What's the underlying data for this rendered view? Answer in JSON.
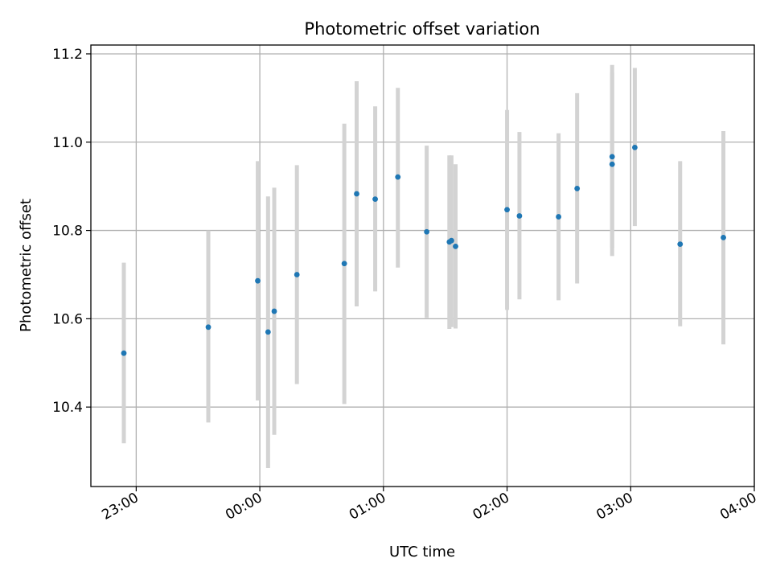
{
  "chart_data": {
    "type": "scatter",
    "title": "Photometric offset variation",
    "xlabel": "UTC time",
    "ylabel": "Photometric offset",
    "x_axis": "time",
    "x_tick_labels": [
      "23:00",
      "00:00",
      "01:00",
      "02:00",
      "03:00",
      "04:00"
    ],
    "y_tick_labels": [
      "10.4",
      "10.6",
      "10.8",
      "11.0",
      "11.2"
    ],
    "y_ticks": [
      10.4,
      10.6,
      10.8,
      11.0,
      11.2
    ],
    "xlim": [
      "22:38",
      "04:00"
    ],
    "ylim": [
      10.22,
      11.22
    ],
    "grid": true,
    "error_bar_style": "vertical grey bars",
    "points": [
      {
        "x": "22:54",
        "y": 10.522,
        "err_low": 10.318,
        "err_high": 10.727
      },
      {
        "x": "23:35",
        "y": 10.581,
        "err_low": 10.365,
        "err_high": 10.8
      },
      {
        "x": "23:59",
        "y": 10.686,
        "err_low": 10.415,
        "err_high": 10.957
      },
      {
        "x": "00:04",
        "y": 10.57,
        "err_low": 10.262,
        "err_high": 10.877
      },
      {
        "x": "00:07",
        "y": 10.617,
        "err_low": 10.337,
        "err_high": 10.897
      },
      {
        "x": "00:18",
        "y": 10.7,
        "err_low": 10.452,
        "err_high": 10.948
      },
      {
        "x": "00:41",
        "y": 10.725,
        "err_low": 10.407,
        "err_high": 11.042
      },
      {
        "x": "00:47",
        "y": 10.883,
        "err_low": 10.628,
        "err_high": 11.138
      },
      {
        "x": "00:56",
        "y": 10.871,
        "err_low": 10.662,
        "err_high": 11.081
      },
      {
        "x": "01:07",
        "y": 10.921,
        "err_low": 10.716,
        "err_high": 11.123
      },
      {
        "x": "01:21",
        "y": 10.797,
        "err_low": 10.602,
        "err_high": 10.992
      },
      {
        "x": "01:32",
        "y": 10.774,
        "err_low": 10.577,
        "err_high": 10.97
      },
      {
        "x": "01:33",
        "y": 10.777,
        "err_low": 10.581,
        "err_high": 10.97
      },
      {
        "x": "01:35",
        "y": 10.764,
        "err_low": 10.578,
        "err_high": 10.95
      },
      {
        "x": "02:00",
        "y": 10.847,
        "err_low": 10.62,
        "err_high": 11.073
      },
      {
        "x": "02:06",
        "y": 10.833,
        "err_low": 10.644,
        "err_high": 11.023
      },
      {
        "x": "02:25",
        "y": 10.831,
        "err_low": 10.642,
        "err_high": 11.02
      },
      {
        "x": "02:34",
        "y": 10.895,
        "err_low": 10.68,
        "err_high": 11.111
      },
      {
        "x": "02:51",
        "y": 10.95,
        "err_low": 10.742,
        "err_high": 11.158
      },
      {
        "x": "02:51",
        "y": 10.967,
        "err_low": 10.76,
        "err_high": 11.175
      },
      {
        "x": "03:02",
        "y": 10.988,
        "err_low": 10.81,
        "err_high": 11.168
      },
      {
        "x": "03:24",
        "y": 10.769,
        "err_low": 10.583,
        "err_high": 10.957
      },
      {
        "x": "03:45",
        "y": 10.784,
        "err_low": 10.542,
        "err_high": 11.025
      }
    ],
    "colors": {
      "point": "#1f77b4",
      "error_bar": "#d3d3d3",
      "grid": "#b0b0b0",
      "axes": "#000000"
    }
  }
}
